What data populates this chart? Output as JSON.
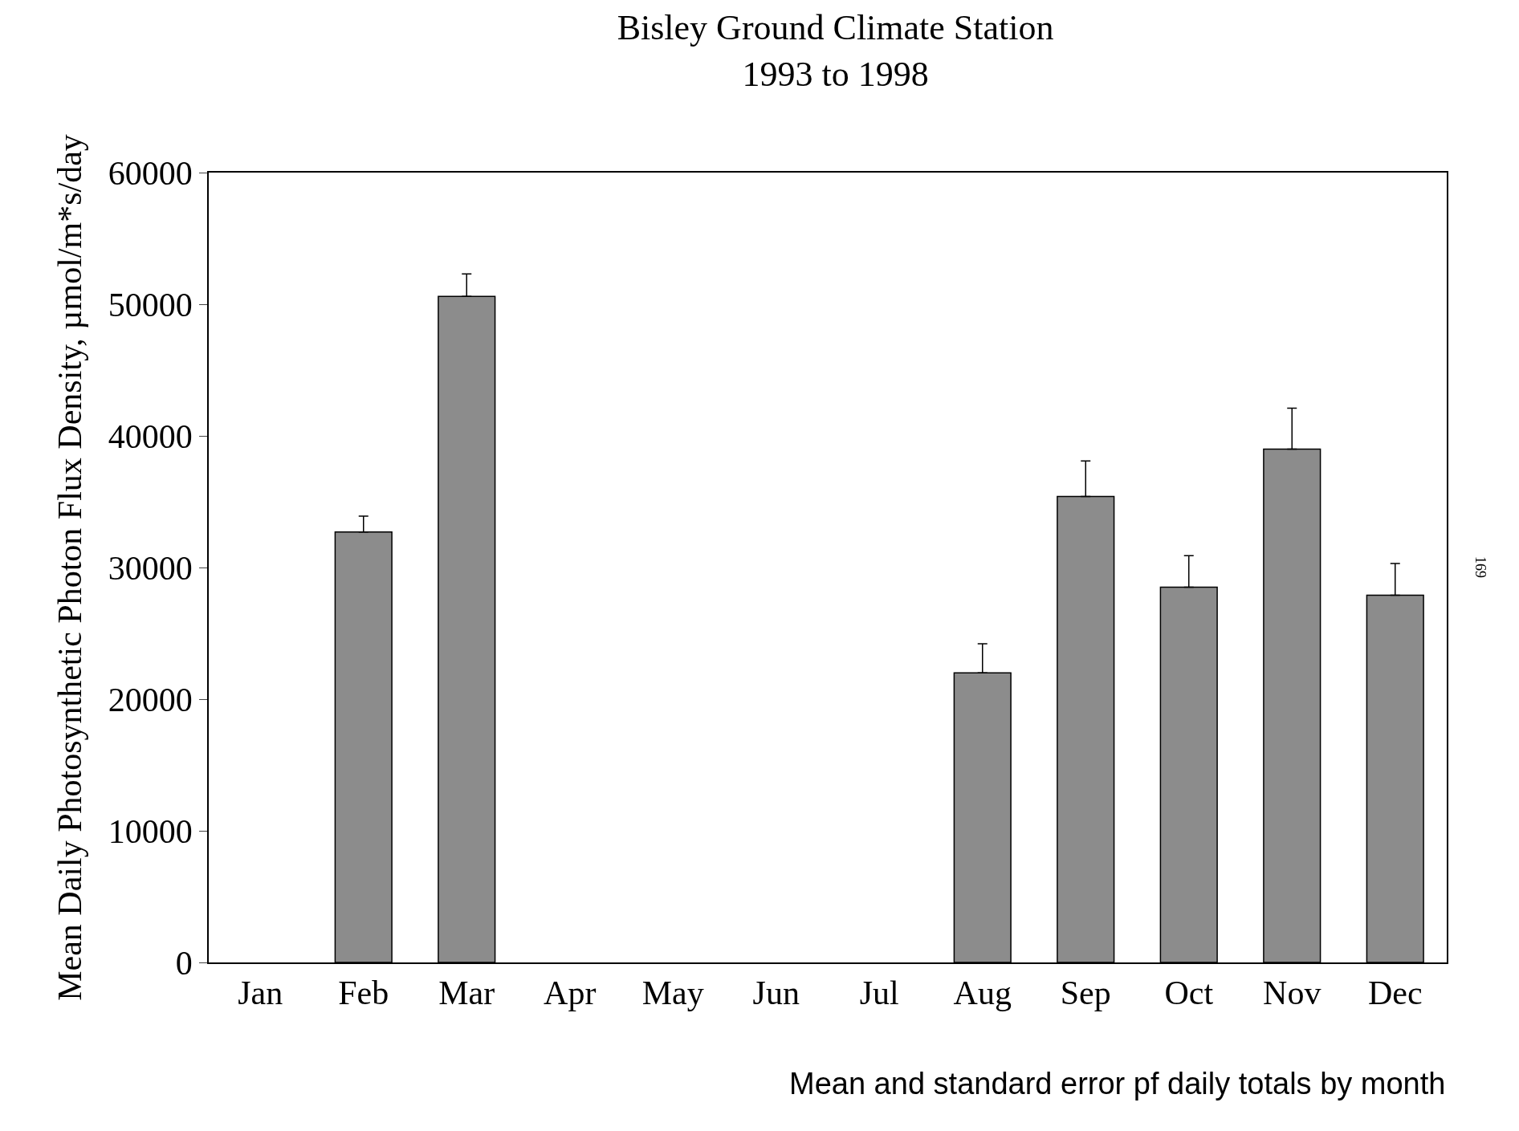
{
  "chart_data": {
    "type": "bar",
    "title": "Bisley Ground Climate Station\n1993 to 1998",
    "xlabel": "Mean and standard error pf daily totals by month",
    "ylabel": "Mean Daily Photosynthetic Photon Flux Density, µmol/m*s/day",
    "categories": [
      "Jan",
      "Feb",
      "Mar",
      "Apr",
      "May",
      "Jun",
      "Jul",
      "Aug",
      "Sep",
      "Oct",
      "Nov",
      "Dec"
    ],
    "values": [
      null,
      32700,
      50600,
      null,
      null,
      null,
      null,
      22000,
      35400,
      28500,
      39000,
      27900
    ],
    "errors": [
      null,
      [
        32700,
        33900
      ],
      [
        50600,
        52300
      ],
      null,
      null,
      null,
      null,
      [
        22000,
        24200
      ],
      [
        35400,
        38100
      ],
      [
        28500,
        30900
      ],
      [
        39000,
        42100
      ],
      [
        27900,
        30300
      ]
    ],
    "color": "#8c8c8c",
    "ylim": [
      0,
      60000
    ],
    "yticks": [
      0,
      10000,
      20000,
      30000,
      40000,
      50000,
      60000
    ],
    "annotations": [
      "169"
    ]
  }
}
